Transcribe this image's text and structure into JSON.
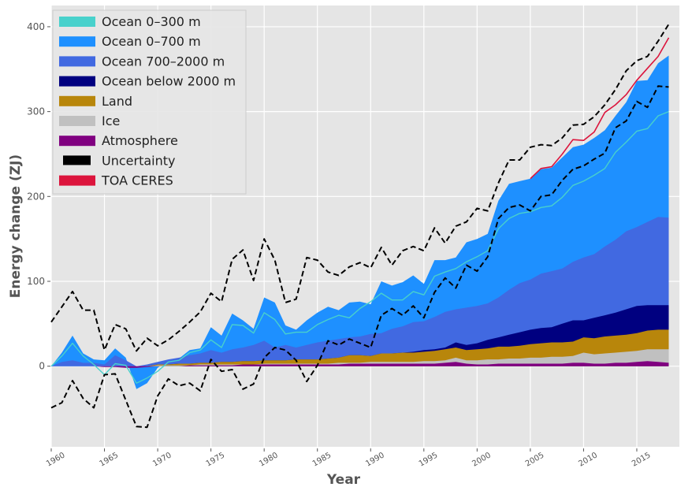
{
  "chart_data": {
    "type": "area",
    "title": "",
    "xlabel": "Year",
    "ylabel": "Energy change (ZJ)",
    "xlim": [
      1960,
      2019
    ],
    "ylim": [
      -95,
      425
    ],
    "grid": true,
    "legend_placement": "top-left",
    "x_ticks": [
      1960,
      1965,
      1970,
      1975,
      1980,
      1985,
      1990,
      1995,
      2000,
      2005,
      2010,
      2015
    ],
    "x_tick_labels": [
      "1960",
      "1965",
      "1970",
      "1975",
      "1980",
      "1985",
      "1990",
      "1995",
      "2000",
      "2005",
      "2010",
      "2015"
    ],
    "y_ticks": [
      0,
      100,
      200,
      300,
      400
    ],
    "y_tick_labels": [
      "0",
      "100",
      "200",
      "300",
      "400"
    ],
    "note": "Area series values are cumulative stacked tops (ZJ) as read from the figure.",
    "years": [
      1960,
      1961,
      1962,
      1963,
      1964,
      1965,
      1966,
      1967,
      1968,
      1969,
      1970,
      1971,
      1972,
      1973,
      1974,
      1975,
      1976,
      1977,
      1978,
      1979,
      1980,
      1981,
      1982,
      1983,
      1984,
      1985,
      1986,
      1987,
      1988,
      1989,
      1990,
      1991,
      1992,
      1993,
      1994,
      1995,
      1996,
      1997,
      1998,
      1999,
      2000,
      2001,
      2002,
      2003,
      2004,
      2005,
      2006,
      2007,
      2008,
      2009,
      2010,
      2011,
      2012,
      2013,
      2014,
      2015,
      2016,
      2017,
      2018
    ],
    "series": [
      {
        "name": "Ocean 0–700 m",
        "kind": "area",
        "color": "#1E90FF",
        "values": [
          0,
          16,
          36,
          15,
          8,
          7,
          21,
          10,
          -27,
          -20,
          -2,
          7,
          9,
          19,
          21,
          46,
          36,
          62,
          54,
          44,
          81,
          75,
          48,
          43,
          54,
          63,
          70,
          66,
          75,
          76,
          73,
          100,
          95,
          99,
          107,
          97,
          125,
          125,
          128,
          146,
          150,
          156,
          195,
          215,
          218,
          221,
          232,
          234,
          246,
          258,
          261,
          269,
          278,
          295,
          311,
          336,
          337,
          357,
          366
        ]
      },
      {
        "name": "Ocean 700–2000 m",
        "kind": "area",
        "color": "#4169E1",
        "values": [
          0,
          5,
          7,
          4,
          4,
          2,
          13,
          7,
          0,
          2,
          5,
          8,
          10,
          13,
          15,
          19,
          16,
          20,
          22,
          25,
          30,
          22,
          25,
          22,
          25,
          28,
          30,
          32,
          34,
          35,
          38,
          39,
          44,
          47,
          52,
          53,
          58,
          64,
          67,
          69,
          71,
          74,
          81,
          90,
          98,
          102,
          109,
          112,
          115,
          123,
          128,
          132,
          141,
          149,
          159,
          164,
          170,
          176,
          175
        ]
      },
      {
        "name": "Ocean below 2000 m",
        "kind": "area",
        "color": "#000080",
        "values": [
          0,
          0,
          0,
          0,
          0,
          0,
          0,
          0,
          0,
          0,
          2,
          2,
          3,
          3,
          4,
          4,
          5,
          5,
          6,
          6,
          7,
          7,
          7,
          8,
          8,
          8,
          9,
          10,
          13,
          13,
          12,
          15,
          15,
          16,
          17,
          19,
          20,
          22,
          28,
          25,
          27,
          31,
          34,
          37,
          40,
          43,
          45,
          46,
          50,
          54,
          54,
          57,
          60,
          63,
          67,
          71,
          72,
          72,
          72
        ]
      },
      {
        "name": "Land",
        "kind": "area",
        "color": "#B8860B",
        "values": [
          0,
          0,
          0,
          0,
          0,
          0,
          0,
          0,
          0,
          0,
          2,
          2,
          3,
          3,
          4,
          4,
          5,
          5,
          6,
          6,
          7,
          7,
          7,
          8,
          8,
          8,
          9,
          10,
          13,
          13,
          12,
          15,
          15,
          16,
          16,
          17,
          18,
          20,
          22,
          19,
          20,
          21,
          23,
          23,
          24,
          26,
          27,
          28,
          28,
          29,
          34,
          33,
          35,
          36,
          37,
          39,
          42,
          43,
          43
        ]
      },
      {
        "name": "Ice",
        "kind": "area",
        "color": "#C0C0C0",
        "values": [
          0,
          0,
          0,
          0,
          0,
          0,
          0,
          0,
          0,
          0,
          1,
          1,
          1,
          1,
          2,
          2,
          2,
          2,
          2,
          2,
          3,
          3,
          3,
          3,
          3,
          3,
          3,
          4,
          4,
          4,
          5,
          5,
          5,
          5,
          5,
          6,
          6,
          7,
          10,
          7,
          7,
          8,
          8,
          9,
          9,
          10,
          10,
          11,
          11,
          12,
          16,
          14,
          15,
          16,
          17,
          18,
          20,
          20,
          20
        ]
      },
      {
        "name": "Atmosphere",
        "kind": "area",
        "color": "#800080",
        "values": [
          0,
          0,
          0,
          0,
          0,
          -1,
          -1,
          -2,
          -2,
          -1,
          0,
          0,
          0,
          1,
          1,
          1,
          1,
          1,
          2,
          2,
          2,
          2,
          2,
          2,
          2,
          2,
          2,
          2,
          3,
          3,
          3,
          3,
          3,
          3,
          3,
          3,
          3,
          4,
          5,
          3,
          2,
          2,
          3,
          3,
          3,
          3,
          3,
          3,
          3,
          4,
          4,
          3,
          3,
          4,
          4,
          5,
          6,
          5,
          4
        ]
      },
      {
        "name": "Ocean 0–300 m",
        "kind": "line",
        "color": "#48D1CC",
        "values": [
          0,
          12,
          27,
          12,
          2,
          -10,
          3,
          1,
          -20,
          -14,
          -6,
          5,
          7,
          16,
          19,
          31,
          22,
          49,
          48,
          39,
          63,
          55,
          38,
          40,
          40,
          49,
          55,
          60,
          57,
          68,
          76,
          86,
          78,
          78,
          88,
          84,
          106,
          111,
          115,
          123,
          129,
          136,
          162,
          174,
          180,
          182,
          187,
          189,
          199,
          213,
          218,
          225,
          233,
          252,
          264,
          277,
          280,
          295,
          300
        ]
      },
      {
        "name": "Uncertainty (upper)",
        "kind": "dashed-line",
        "color": "#000000",
        "values": [
          52,
          70,
          88,
          66,
          66,
          19,
          49,
          44,
          18,
          33,
          24,
          31,
          41,
          52,
          64,
          86,
          76,
          126,
          137,
          101,
          150,
          125,
          75,
          79,
          128,
          125,
          111,
          107,
          117,
          122,
          116,
          140,
          119,
          136,
          141,
          136,
          163,
          145,
          165,
          170,
          186,
          183,
          216,
          243,
          243,
          258,
          261,
          260,
          269,
          284,
          285,
          294,
          308,
          326,
          348,
          360,
          365,
          383,
          403
        ]
      },
      {
        "name": "Uncertainty (lower)",
        "kind": "dashed-line",
        "color": "#000000",
        "values": [
          -49,
          -43,
          -17,
          -38,
          -49,
          -10,
          -9,
          -40,
          -71,
          -72,
          -35,
          -15,
          -23,
          -20,
          -29,
          8,
          -6,
          -4,
          -27,
          -21,
          10,
          22,
          19,
          7,
          -18,
          1,
          30,
          25,
          32,
          27,
          22,
          60,
          68,
          60,
          71,
          57,
          87,
          104,
          92,
          119,
          112,
          129,
          174,
          187,
          190,
          183,
          200,
          202,
          219,
          232,
          236,
          244,
          251,
          281,
          289,
          312,
          305,
          330,
          329
        ]
      },
      {
        "name": "TOA CERES",
        "kind": "line",
        "color": "#DC143C",
        "start_year": 2005,
        "values": [
          221,
          233,
          235,
          250,
          267,
          266,
          276,
          299,
          308,
          320,
          337,
          351,
          365,
          387
        ]
      }
    ],
    "legend": [
      {
        "label": "Ocean 0–300 m",
        "color": "#48D1CC"
      },
      {
        "label": "Ocean 0–700 m",
        "color": "#1E90FF"
      },
      {
        "label": "Ocean 700–2000 m",
        "color": "#4169E1"
      },
      {
        "label": "Ocean below 2000 m",
        "color": "#000080"
      },
      {
        "label": "Land",
        "color": "#B8860B"
      },
      {
        "label": "Ice",
        "color": "#C0C0C0"
      },
      {
        "label": "Atmosphere",
        "color": "#800080"
      },
      {
        "label": "Uncertainty",
        "color": "#000000"
      },
      {
        "label": "TOA CERES",
        "color": "#DC143C"
      }
    ]
  },
  "colors": {
    "plot_background": "#E5E5E5",
    "grid": "#FFFFFF",
    "axis_text": "#555555"
  }
}
